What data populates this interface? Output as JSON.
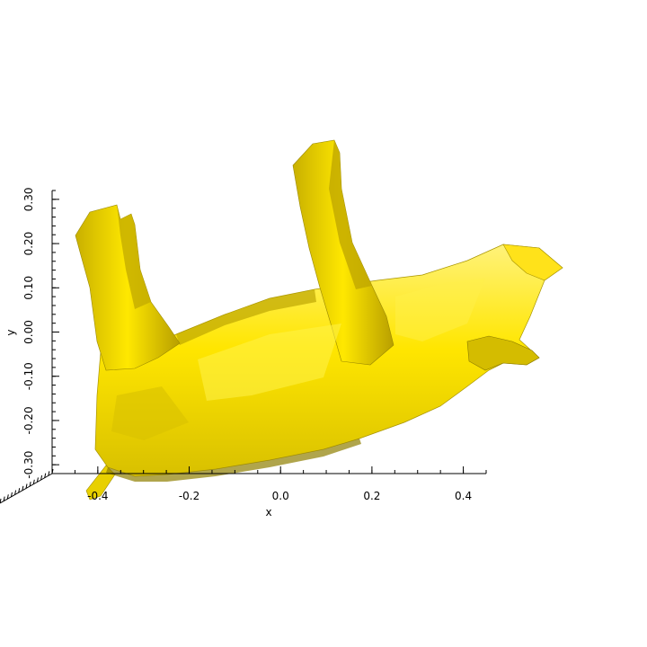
{
  "scene": {
    "background": "#ffffff",
    "mesh_color": "#ffea00",
    "mesh_shadow_color": "#8a7a00",
    "mesh_highlight_color": "#fff060"
  },
  "axes": {
    "x": {
      "label": "x",
      "ticks": [
        "-0.4",
        "-0.2",
        "0.0",
        "0.2",
        "0.4"
      ],
      "tick_values": [
        -0.4,
        -0.2,
        0.0,
        0.2,
        0.4
      ],
      "range": [
        -0.5,
        0.45
      ]
    },
    "y": {
      "label": "y",
      "ticks": [
        "0.30",
        "0.20",
        "0.10",
        "0.00",
        "-0.10",
        "-0.20",
        "-0.30"
      ],
      "tick_values": [
        0.3,
        0.2,
        0.1,
        0.0,
        -0.1,
        -0.2,
        -0.3
      ],
      "range": [
        -0.32,
        0.32
      ]
    }
  }
}
